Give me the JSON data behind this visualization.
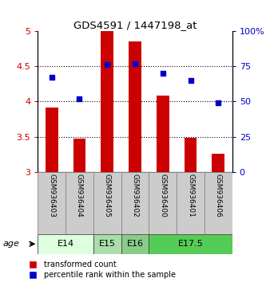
{
  "title": "GDS4591 / 1447198_at",
  "samples": [
    "GSM936403",
    "GSM936404",
    "GSM936405",
    "GSM936402",
    "GSM936400",
    "GSM936401",
    "GSM936406"
  ],
  "bar_values": [
    3.92,
    3.47,
    5.0,
    4.85,
    4.08,
    3.49,
    3.26
  ],
  "dot_values": [
    67,
    52,
    76,
    77,
    70,
    65,
    49
  ],
  "bar_color": "#cc0000",
  "dot_color": "#0000cc",
  "ylim_left": [
    3.0,
    5.0
  ],
  "ylim_right": [
    0,
    100
  ],
  "yticks_left": [
    3.0,
    3.5,
    4.0,
    4.5,
    5.0
  ],
  "ytick_labels_left": [
    "3",
    "3.5",
    "4",
    "4.5",
    "5"
  ],
  "ytick_labels_right": [
    "0",
    "25",
    "50",
    "75",
    "100%"
  ],
  "age_groups": [
    {
      "label": "E14",
      "samples": [
        "GSM936403",
        "GSM936404"
      ],
      "color": "#ddffdd"
    },
    {
      "label": "E15",
      "samples": [
        "GSM936405"
      ],
      "color": "#aaddaa"
    },
    {
      "label": "E16",
      "samples": [
        "GSM936402"
      ],
      "color": "#88cc88"
    },
    {
      "label": "E17.5",
      "samples": [
        "GSM936400",
        "GSM936401",
        "GSM936406"
      ],
      "color": "#55cc55"
    }
  ],
  "legend_bar_label": "transformed count",
  "legend_dot_label": "percentile rank within the sample",
  "bar_color_left": "#cc0000",
  "dot_color_right": "#0000cc",
  "bar_bottom": 3.0,
  "sample_box_color": "#cccccc",
  "age_label": "age"
}
